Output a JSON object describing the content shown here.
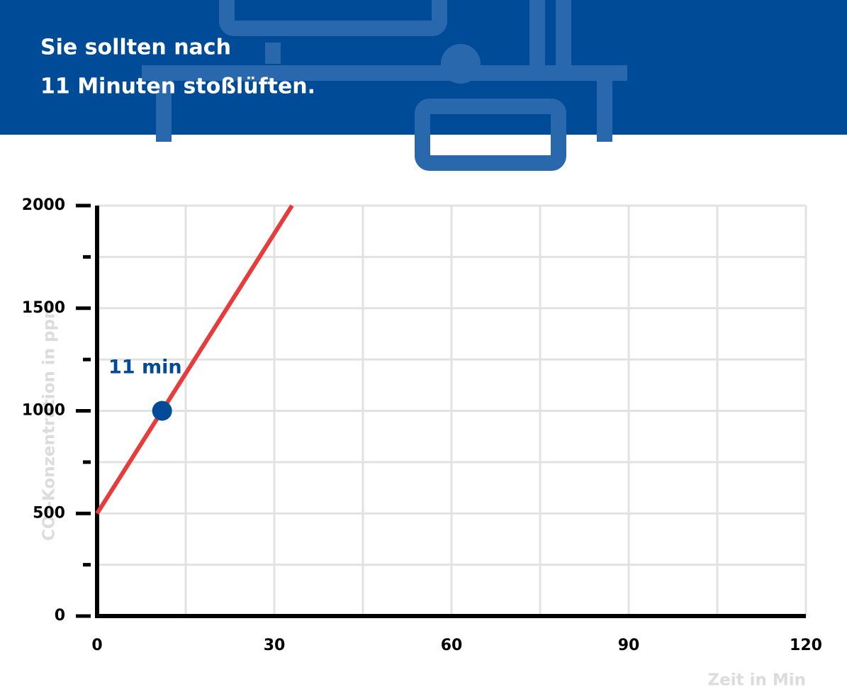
{
  "header": {
    "lines": [
      "Sie sollten nach",
      "11 Minuten stoßlüften."
    ]
  },
  "chart_data": {
    "type": "line",
    "x_label": "Zeit in Min",
    "y_label": "CO₂-Konzentration in ppm",
    "x": [
      0,
      33
    ],
    "series": [
      {
        "color": "#e63c3c",
        "values": [
          500,
          2000
        ]
      }
    ],
    "xlim": [
      0,
      120
    ],
    "xticks": [
      0,
      30,
      60,
      90,
      120
    ],
    "minor_xticks": [
      15,
      45,
      75,
      105
    ],
    "ylim": [
      0,
      2000
    ],
    "yticks": [
      0,
      500,
      1000,
      1500,
      2000
    ],
    "minor_yticks": [
      250,
      750,
      1250,
      1750
    ],
    "grid": true,
    "annotation": {
      "x": 11,
      "y": 1000,
      "label": "11 min",
      "color": "#004b98"
    }
  }
}
